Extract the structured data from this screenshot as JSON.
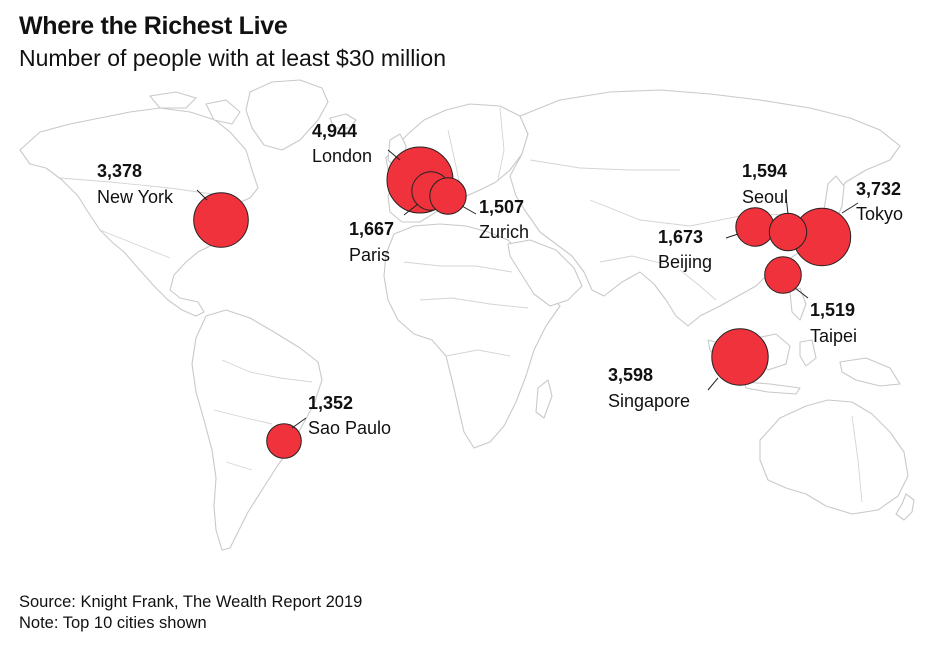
{
  "header": {
    "title": "Where the Richest Live",
    "subtitle": "Number of people with at least $30 million"
  },
  "footer": {
    "source": "Source: Knight Frank, The Wealth Report 2019",
    "note": "Note: Top 10 cities shown"
  },
  "colors": {
    "bubble": "#f0323c",
    "land_outline": "#c9c9c9",
    "text": "#111111"
  },
  "chart_data": {
    "type": "bubble-map",
    "value_label": "Number of people with at least $30 million",
    "cities": [
      {
        "name": "London",
        "value": "4,944",
        "count": 4944,
        "lat": 51.5,
        "lon": -0.1
      },
      {
        "name": "Tokyo",
        "value": "3,732",
        "count": 3732,
        "lat": 35.7,
        "lon": 139.7
      },
      {
        "name": "Singapore",
        "value": "3,598",
        "count": 3598,
        "lat": 1.35,
        "lon": 103.8
      },
      {
        "name": "New York",
        "value": "3,378",
        "count": 3378,
        "lat": 40.7,
        "lon": -74.0
      },
      {
        "name": "Beijing",
        "value": "1,673",
        "count": 1673,
        "lat": 39.9,
        "lon": 116.4
      },
      {
        "name": "Paris",
        "value": "1,667",
        "count": 1667,
        "lat": 48.9,
        "lon": 2.35
      },
      {
        "name": "Seoul",
        "value": "1,594",
        "count": 1594,
        "lat": 37.6,
        "lon": 127.0
      },
      {
        "name": "Taipei",
        "value": "1,519",
        "count": 1519,
        "lat": 25.0,
        "lon": 121.5
      },
      {
        "name": "Zurich",
        "value": "1,507",
        "count": 1507,
        "lat": 47.4,
        "lon": 8.5
      },
      {
        "name": "Sao Paulo",
        "value": "1,352",
        "count": 1352,
        "lat": -23.5,
        "lon": -46.6
      }
    ]
  }
}
